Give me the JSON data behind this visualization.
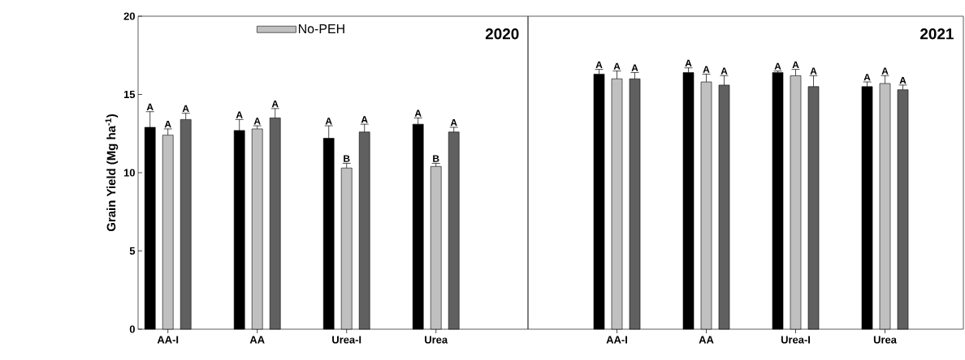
{
  "chart_data": [
    {
      "type": "bar",
      "title": "2020",
      "ylabel": "Grain Yield (Mg ha$^{-1}$)",
      "categories": [
        "AA-I",
        "AA",
        "Urea-I",
        "Urea"
      ],
      "ylim": [
        0,
        20
      ],
      "yticks": [
        0,
        5,
        10,
        15,
        20
      ],
      "legend": "top",
      "series": [
        {
          "color": "#000000",
          "values": [
            12.9,
            12.7,
            12.2,
            13.1
          ],
          "errors": [
            [
              12.9,
              13.9
            ],
            [
              12.7,
              13.4
            ],
            [
              12.2,
              13.0
            ],
            [
              13.1,
              13.5
            ]
          ],
          "value_labels": [
            "A",
            "A",
            "A",
            "A"
          ]
        },
        {
          "name": "No-PEH",
          "color": "#c0c0c0",
          "values": [
            12.4,
            12.8,
            10.3,
            10.4
          ],
          "errors": [
            [
              12.4,
              12.8
            ],
            [
              12.8,
              13.0
            ],
            [
              10.3,
              10.6
            ],
            [
              10.4,
              10.6
            ]
          ],
          "value_labels": [
            "A",
            "A",
            "B",
            "B"
          ]
        },
        {
          "color": "#606060",
          "values": [
            13.4,
            13.5,
            12.6,
            12.6
          ],
          "errors": [
            [
              13.4,
              13.8
            ],
            [
              13.5,
              14.1
            ],
            [
              12.6,
              13.1
            ],
            [
              12.6,
              12.9
            ]
          ],
          "value_labels": [
            "A",
            "A",
            "A",
            "A"
          ]
        }
      ]
    },
    {
      "type": "bar",
      "title": "2021",
      "categories": [
        "AA-I",
        "AA",
        "Urea-I",
        "Urea"
      ],
      "ylim": [
        0,
        20
      ],
      "tick_labels": "x",
      "series": [
        {
          "color": "#000000",
          "values": [
            16.3,
            16.4,
            16.4,
            15.5
          ],
          "errors": [
            [
              16.3,
              16.6
            ],
            [
              16.4,
              16.7
            ],
            [
              16.4,
              16.5
            ],
            [
              15.5,
              15.8
            ]
          ],
          "value_labels": [
            "A",
            "A",
            "A",
            "A"
          ]
        },
        {
          "color": "#c0c0c0",
          "values": [
            16.0,
            15.8,
            16.2,
            15.7
          ],
          "errors": [
            [
              16.0,
              16.5
            ],
            [
              15.8,
              16.3
            ],
            [
              16.2,
              16.6
            ],
            [
              15.7,
              16.2
            ]
          ],
          "value_labels": [
            "A",
            "A",
            "A",
            "A"
          ]
        },
        {
          "color": "#606060",
          "values": [
            16.0,
            15.6,
            15.5,
            15.3
          ],
          "errors": [
            [
              16.0,
              16.4
            ],
            [
              15.6,
              16.2
            ],
            [
              15.5,
              16.2
            ],
            [
              15.3,
              15.6
            ]
          ],
          "value_labels": [
            "A",
            "A",
            "A",
            "A"
          ]
        }
      ]
    }
  ]
}
